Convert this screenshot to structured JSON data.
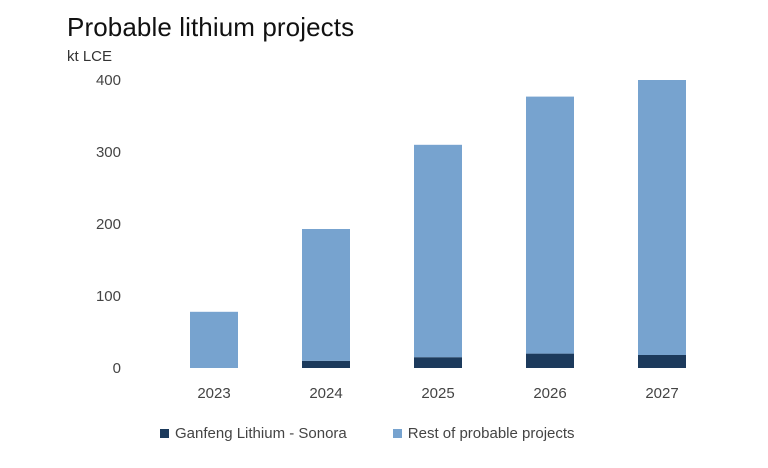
{
  "chart_data": {
    "type": "bar",
    "stacked": true,
    "title": "Probable lithium projects",
    "ylabel": "kt LCE",
    "xlabel": "",
    "categories": [
      "2023",
      "2024",
      "2025",
      "2026",
      "2027"
    ],
    "ylim": [
      0,
      400
    ],
    "yticks": [
      0,
      100,
      200,
      300,
      400
    ],
    "grid": false,
    "legend_position": "bottom",
    "series": [
      {
        "name": "Ganfeng Lithium - Sonora",
        "color": "#1c3a5c",
        "values": [
          0,
          10,
          15,
          20,
          18
        ]
      },
      {
        "name": "Rest of probable projects",
        "color": "#77a3cf",
        "values": [
          78,
          183,
          295,
          357,
          382
        ]
      }
    ]
  }
}
